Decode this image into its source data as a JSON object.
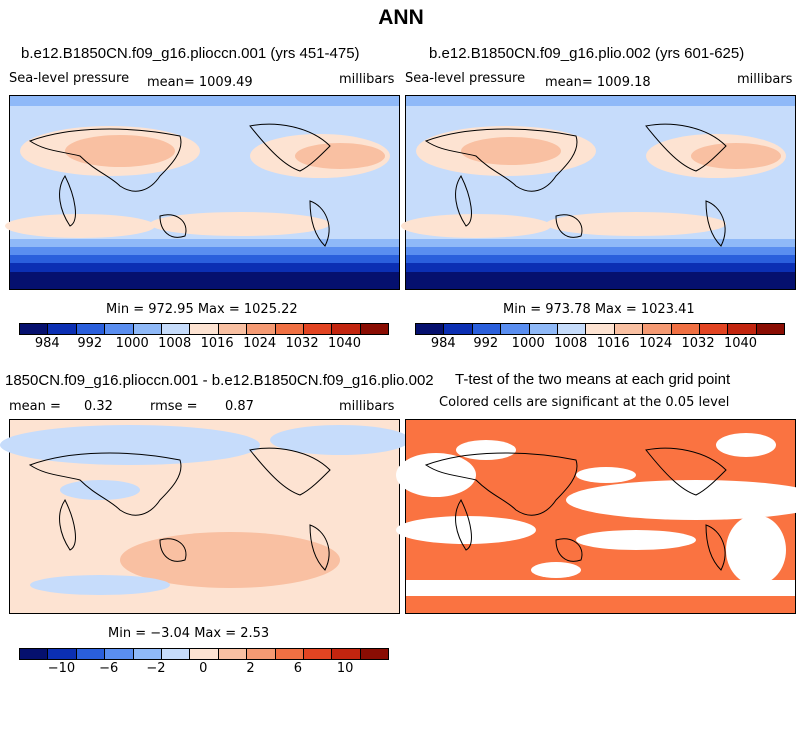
{
  "title": "ANN",
  "panels": {
    "p1": {
      "title": "b.e12.B1850CN.f09_g16.plioccn.001 (yrs 451-475)",
      "variable": "Sea-level pressure",
      "mean": "mean= 1009.49",
      "units": "millibars",
      "minmax": "Min = 972.95 Max = 1025.22",
      "cbar_labels": [
        "984",
        "992",
        "1000",
        "1008",
        "1016",
        "1024",
        "1032",
        "1040"
      ]
    },
    "p2": {
      "title": "b.e12.B1850CN.f09_g16.plio.002 (yrs 601-625)",
      "variable": "Sea-level pressure",
      "mean": "mean= 1009.18",
      "units": "millibars",
      "minmax": "Min = 973.78 Max = 1023.41",
      "cbar_labels": [
        "984",
        "992",
        "1000",
        "1008",
        "1016",
        "1024",
        "1032",
        "1040"
      ]
    },
    "p3": {
      "title": "1850CN.f09_g16.plioccn.001 - b.e12.B1850CN.f09_g16.plio.002",
      "mean_label": "mean =",
      "mean_value": "0.32",
      "rmse_label": "rmse =",
      "rmse_value": "0.87",
      "units": "millibars",
      "minmax": "Min = −3.04 Max =   2.53",
      "cbar_labels": [
        "−10",
        "−6",
        "−2",
        "0",
        "2",
        "6",
        "10"
      ]
    },
    "p4": {
      "title": "T-test of the two means at each grid point",
      "subtitle": "Colored cells are significant at the 0.05 level"
    }
  },
  "colors": {
    "palette": [
      "#05106e",
      "#0b2fb3",
      "#2a5fdc",
      "#5a8ef0",
      "#8fb9f8",
      "#c6dcfb",
      "#fde3d2",
      "#f9c0a2",
      "#f59a73",
      "#f07043",
      "#e24422",
      "#c2250f",
      "#8a0d03"
    ],
    "significant": "#fa7341"
  }
}
